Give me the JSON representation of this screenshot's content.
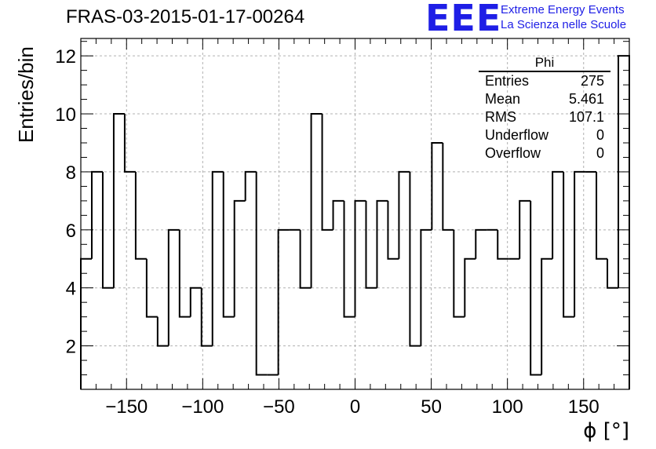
{
  "header": {
    "run_title": "FRAS-03-2015-01-17-00264",
    "logo_text": "EEE",
    "logo_line1": "Extreme Energy Events",
    "logo_line2": "La Scienza nelle Scuole"
  },
  "colors": {
    "logo": "#1e1ee6",
    "line": "#000000",
    "grid": "#b0b0b0"
  },
  "stats": {
    "title": "Phi",
    "rows": [
      {
        "label": "Entries",
        "value": "275"
      },
      {
        "label": "Mean",
        "value": "5.461"
      },
      {
        "label": "RMS",
        "value": "107.1"
      },
      {
        "label": "Underflow",
        "value": "0"
      },
      {
        "label": "Overflow",
        "value": "0"
      }
    ]
  },
  "chart_data": {
    "type": "histogram",
    "ylabel": "Entries/bin",
    "xlabel": "ϕ [°]",
    "xlim": [
      -180,
      180
    ],
    "ylim": [
      0.5,
      12.6
    ],
    "grid": true,
    "bin_width": 7.2,
    "values": [
      5,
      8,
      4,
      10,
      8,
      5,
      3,
      2,
      6,
      3,
      4,
      2,
      8,
      3,
      7,
      8,
      1,
      1,
      6,
      6,
      4,
      10,
      6,
      7,
      3,
      7,
      4,
      7,
      5,
      8,
      2,
      6,
      9,
      6,
      3,
      5,
      6,
      6,
      5,
      5,
      7,
      1,
      5,
      8,
      3,
      8,
      8,
      5,
      4,
      12
    ],
    "xticks": [
      -150,
      -100,
      -50,
      0,
      50,
      100,
      150
    ],
    "xtick_labels": [
      "−150",
      "−100",
      "−50",
      "0",
      "50",
      "100",
      "150"
    ],
    "yticks": [
      2,
      4,
      6,
      8,
      10,
      12
    ],
    "ytick_labels": [
      "2",
      "4",
      "6",
      "8",
      "10",
      "12"
    ]
  }
}
